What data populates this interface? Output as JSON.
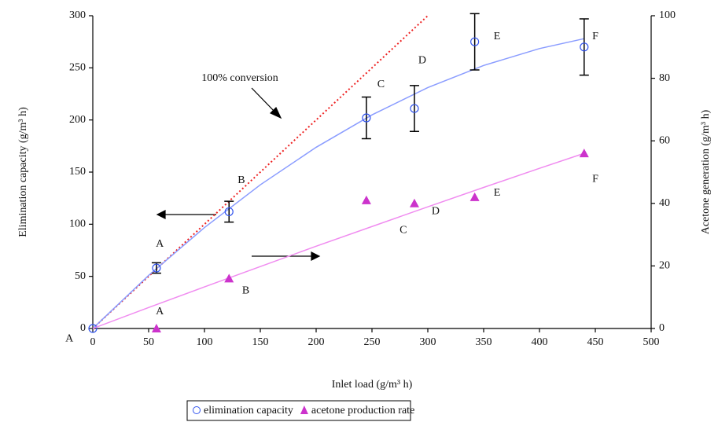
{
  "chart_data": {
    "type": "scatter",
    "xlabel": "Inlet load (g/m³ h)",
    "ylabel": "Elimination capacity (g/m³ h)",
    "y2label": "Acetone generation (g/m³ h)",
    "xlim": [
      0,
      500
    ],
    "xticks": [
      0,
      50,
      100,
      150,
      200,
      250,
      300,
      350,
      400,
      450,
      500
    ],
    "ylim": [
      0,
      300
    ],
    "yticks": [
      0,
      50,
      100,
      150,
      200,
      250,
      300
    ],
    "y2lim": [
      0,
      100
    ],
    "y2ticks": [
      0,
      20,
      40,
      60,
      80,
      100
    ],
    "legend": "bottom",
    "series": [
      {
        "name": "elimination capacity",
        "color": "#3355ee",
        "marker": "circle",
        "x": [
          0,
          57,
          122,
          245,
          288,
          342,
          440
        ],
        "values": [
          0,
          58,
          112,
          202,
          211,
          275,
          270
        ],
        "errors": [
          null,
          5,
          10,
          20,
          22,
          27,
          27
        ],
        "fit": {
          "color": "#8a9cff",
          "x": [
            0,
            50,
            100,
            150,
            200,
            250,
            300,
            350,
            400,
            440
          ],
          "values": [
            0,
            50.9,
            96.8,
            137.8,
            173.8,
            204.9,
            231.1,
            252.3,
            268.5,
            278.0
          ]
        }
      },
      {
        "name": "acetone production rate",
        "color": "#cc33cc",
        "marker": "triangle",
        "axis": "y2",
        "x": [
          57,
          122,
          245,
          288,
          342,
          440
        ],
        "values": [
          0,
          16,
          41,
          40,
          42,
          56
        ],
        "fit": {
          "color": "#f08cf0",
          "x": [
            0,
            50,
            100,
            150,
            200,
            250,
            300,
            350,
            400,
            440
          ],
          "values": [
            0,
            6.7,
            13.3,
            19.8,
            26.3,
            32.6,
            38.9,
            45.1,
            51.2,
            56.0
          ]
        }
      }
    ],
    "reference_line": {
      "label": "100% conversion",
      "color": "#ee2222",
      "x": [
        0,
        300
      ],
      "values": [
        0,
        300
      ]
    },
    "annotations": [
      {
        "text": "A",
        "x": 60,
        "y": 81
      },
      {
        "text": "B",
        "x": 133,
        "y": 142
      },
      {
        "text": "C",
        "x": 258,
        "y": 234
      },
      {
        "text": "D",
        "x": 295,
        "y": 257
      },
      {
        "text": "E",
        "x": 362,
        "y": 280
      },
      {
        "text": "F",
        "x": 450,
        "y": 280
      },
      {
        "text": "A",
        "x": 60,
        "y": 16
      },
      {
        "text": "B",
        "x": 137,
        "y": 36
      },
      {
        "text": "C",
        "x": 278,
        "y": 94
      },
      {
        "text": "D",
        "x": 307,
        "y": 112
      },
      {
        "text": "E",
        "x": 362,
        "y": 130
      },
      {
        "text": "F",
        "x": 450,
        "y": 143
      },
      {
        "text": "A",
        "x": -21,
        "y": -10
      }
    ]
  }
}
